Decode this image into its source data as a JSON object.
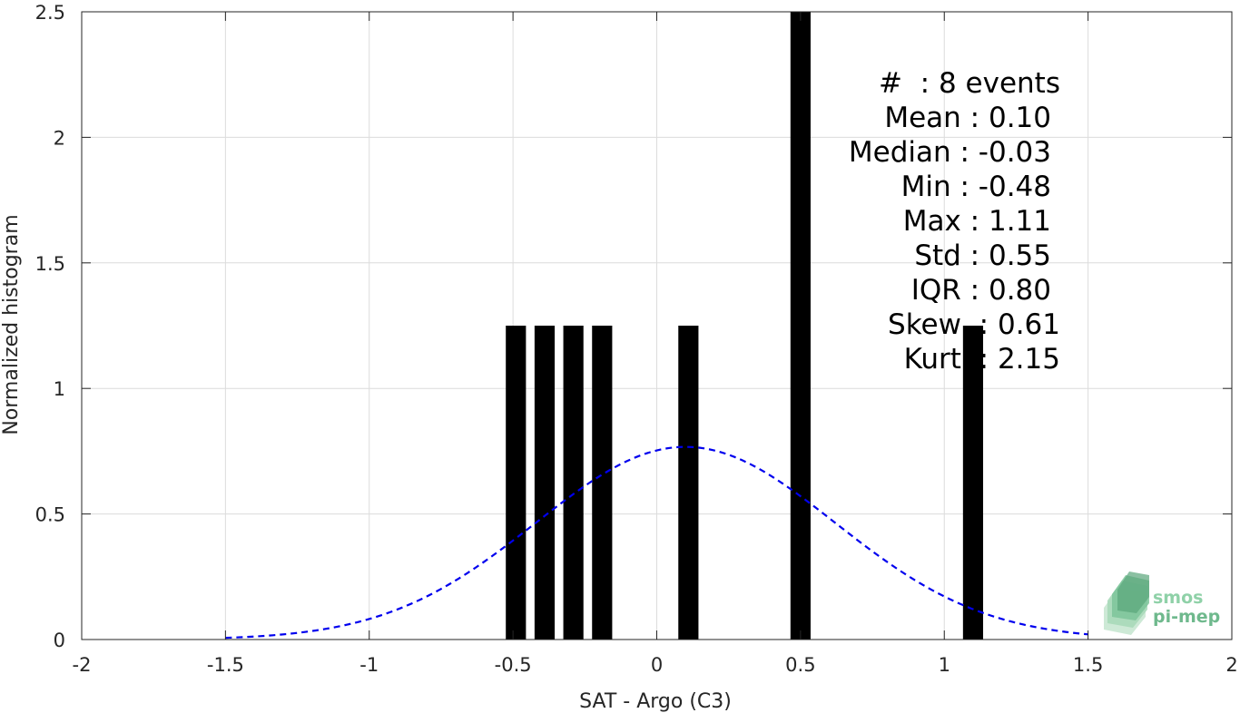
{
  "chart_data": {
    "type": "bar",
    "xlabel": "SAT - Argo (C3)",
    "ylabel": "Normalized histogram",
    "xlim": [
      -2,
      2
    ],
    "ylim": [
      0,
      2.5
    ],
    "grid": true,
    "x_ticks": [
      {
        "value": -2,
        "label": "-2"
      },
      {
        "value": -1.5,
        "label": "-1.5"
      },
      {
        "value": -1,
        "label": "-1"
      },
      {
        "value": -0.5,
        "label": "-0.5"
      },
      {
        "value": 0,
        "label": "0"
      },
      {
        "value": 0.5,
        "label": "0.5"
      },
      {
        "value": 1,
        "label": "1"
      },
      {
        "value": 1.5,
        "label": "1.5"
      },
      {
        "value": 2,
        "label": "2"
      }
    ],
    "y_ticks": [
      {
        "value": 0,
        "label": "0"
      },
      {
        "value": 0.5,
        "label": "0.5"
      },
      {
        "value": 1,
        "label": "1"
      },
      {
        "value": 1.5,
        "label": "1.5"
      },
      {
        "value": 2,
        "label": "2"
      },
      {
        "value": 2.5,
        "label": "2.5"
      }
    ],
    "bar_width": 0.07,
    "bars": [
      {
        "x": -0.49,
        "value": 1.25
      },
      {
        "x": -0.39,
        "value": 1.25
      },
      {
        "x": -0.29,
        "value": 1.25
      },
      {
        "x": -0.19,
        "value": 1.25
      },
      {
        "x": 0.11,
        "value": 1.25
      },
      {
        "x": 0.5,
        "value": 2.5
      },
      {
        "x": 1.1,
        "value": 1.25
      }
    ],
    "bar_color": "#000000",
    "fit_curve": {
      "style": "dashed",
      "color": "#0000ee",
      "mean": 0.1,
      "std": 0.52,
      "x_range": [
        -1.5,
        1.5
      ]
    },
    "stats": [
      "#  : 8 events",
      "Mean : 0.10",
      "Median : -0.03",
      "Min : -0.48",
      "Max : 1.11",
      "Std : 0.55",
      "IQR : 0.80",
      "Skew  : 0.61",
      "Kurt  : 2.15"
    ]
  },
  "logo": {
    "line1": "smos",
    "line2": "pi-mep",
    "color_light": "#8fd1a8",
    "color_dark": "#5aa57a"
  }
}
